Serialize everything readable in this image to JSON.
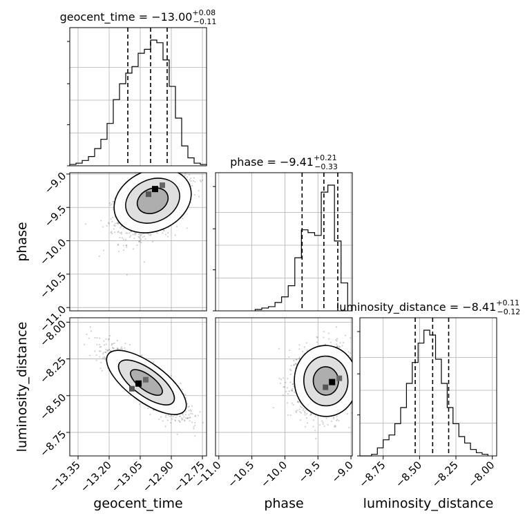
{
  "chart_data": {
    "type": "corner",
    "parameters": [
      "geocent_time",
      "phase",
      "luminosity_distance"
    ],
    "axis_labels": {
      "geocent_time": "geocent_time",
      "phase": "phase",
      "luminosity_distance": "luminosity_distance"
    },
    "titles": [
      {
        "param": "geocent_time",
        "name": "geocent_time",
        "median": "−13.00",
        "plus": "+0.08",
        "minus": "−0.11"
      },
      {
        "param": "phase",
        "name": "phase",
        "median": "−9.41",
        "plus": "+0.21",
        "minus": "−0.33"
      },
      {
        "param": "luminosity_distance",
        "name": "luminosity_distance",
        "median": "−8.41",
        "plus": "+0.11",
        "minus": "−0.12"
      }
    ],
    "ranges": {
      "geocent_time": [
        -13.39,
        -12.73
      ],
      "phase": [
        -11.05,
        -8.98
      ],
      "luminosity_distance": [
        -8.91,
        -7.97
      ]
    },
    "ticks": {
      "geocent_time": {
        "values": [
          -13.35,
          -13.2,
          -13.05,
          -12.9,
          -12.75
        ],
        "labels": [
          "−13.35",
          "−13.20",
          "−13.05",
          "−12.90",
          "−12.75"
        ]
      },
      "phase_y": {
        "values": [
          -9.0,
          -9.5,
          -10.0,
          -10.5,
          -11.0
        ],
        "labels": [
          "−9.0",
          "−9.5",
          "−10.0",
          "−10.5",
          "−11.0"
        ]
      },
      "phase_x": {
        "values": [
          -11.0,
          -10.5,
          -10.0,
          -9.5,
          -9.0
        ],
        "labels": [
          "−11.0",
          "−10.5",
          "−10.0",
          "−9.5",
          "−9.0"
        ]
      },
      "luminosity_distance_y": {
        "values": [
          -8.0,
          -8.25,
          -8.5,
          -8.75
        ],
        "labels": [
          "−8.00",
          "−8.25",
          "−8.50",
          "−8.75"
        ]
      },
      "luminosity_distance_x": {
        "values": [
          -8.75,
          -8.5,
          -8.25,
          -8.0
        ],
        "labels": [
          "−8.75",
          "−8.50",
          "−8.25",
          "−8.00"
        ]
      }
    },
    "quantiles": {
      "geocent_time": [
        -13.11,
        -13.0,
        -12.92
      ],
      "phase": [
        -9.74,
        -9.41,
        -9.2
      ],
      "luminosity_distance": [
        -8.53,
        -8.41,
        -8.3
      ]
    },
    "histograms": {
      "geocent_time": {
        "edges": [
          -13.39,
          -13.36,
          -13.33,
          -13.3,
          -13.27,
          -13.24,
          -13.21,
          -13.18,
          -13.15,
          -13.12,
          -13.09,
          -13.06,
          -13.03,
          -13.0,
          -12.97,
          -12.94,
          -12.91,
          -12.88,
          -12.85,
          -12.82,
          -12.79,
          -12.76,
          -12.73
        ],
        "counts": [
          0.01,
          0.02,
          0.04,
          0.07,
          0.13,
          0.2,
          0.32,
          0.5,
          0.62,
          0.7,
          0.75,
          0.85,
          0.88,
          0.95,
          0.93,
          0.8,
          0.6,
          0.36,
          0.15,
          0.06,
          0.02,
          0.01
        ]
      },
      "phase": {
        "edges": [
          -10.45,
          -10.35,
          -10.25,
          -10.15,
          -10.05,
          -9.95,
          -9.85,
          -9.75,
          -9.65,
          -9.55,
          -9.45,
          -9.35,
          -9.25,
          -9.15,
          -9.05
        ],
        "counts": [
          0.01,
          0.02,
          0.03,
          0.06,
          0.1,
          0.18,
          0.38,
          0.58,
          0.56,
          0.54,
          0.85,
          0.9,
          0.5,
          0.2
        ]
      },
      "luminosity_distance": {
        "edges": [
          -8.91,
          -8.87,
          -8.83,
          -8.79,
          -8.75,
          -8.71,
          -8.67,
          -8.63,
          -8.59,
          -8.55,
          -8.51,
          -8.47,
          -8.43,
          -8.39,
          -8.35,
          -8.31,
          -8.27,
          -8.23,
          -8.19,
          -8.15,
          -8.11,
          -8.07,
          -8.03
        ],
        "counts": [
          0.0,
          0.0,
          0.01,
          0.05,
          0.1,
          0.13,
          0.2,
          0.3,
          0.45,
          0.58,
          0.7,
          0.78,
          0.75,
          0.6,
          0.45,
          0.3,
          0.2,
          0.12,
          0.08,
          0.04,
          0.02,
          0.01
        ]
      }
    },
    "joint": [
      {
        "x": "geocent_time",
        "y": "phase",
        "means": [
          -12.99,
          -9.4
        ],
        "std": [
          0.08,
          0.25
        ],
        "corr": 0.45,
        "peak": [
          -12.97,
          -9.23
        ]
      },
      {
        "x": "geocent_time",
        "y": "luminosity_distance",
        "means": [
          -13.02,
          -8.41
        ],
        "std": [
          0.09,
          0.11
        ],
        "corr": -0.85,
        "peak": [
          -13.05,
          -8.42
        ]
      },
      {
        "x": "phase",
        "y": "luminosity_distance",
        "means": [
          -9.38,
          -8.4
        ],
        "std": [
          0.22,
          0.11
        ],
        "corr": 0.05,
        "peak": [
          -9.26,
          -8.41
        ]
      }
    ],
    "grid": true
  }
}
